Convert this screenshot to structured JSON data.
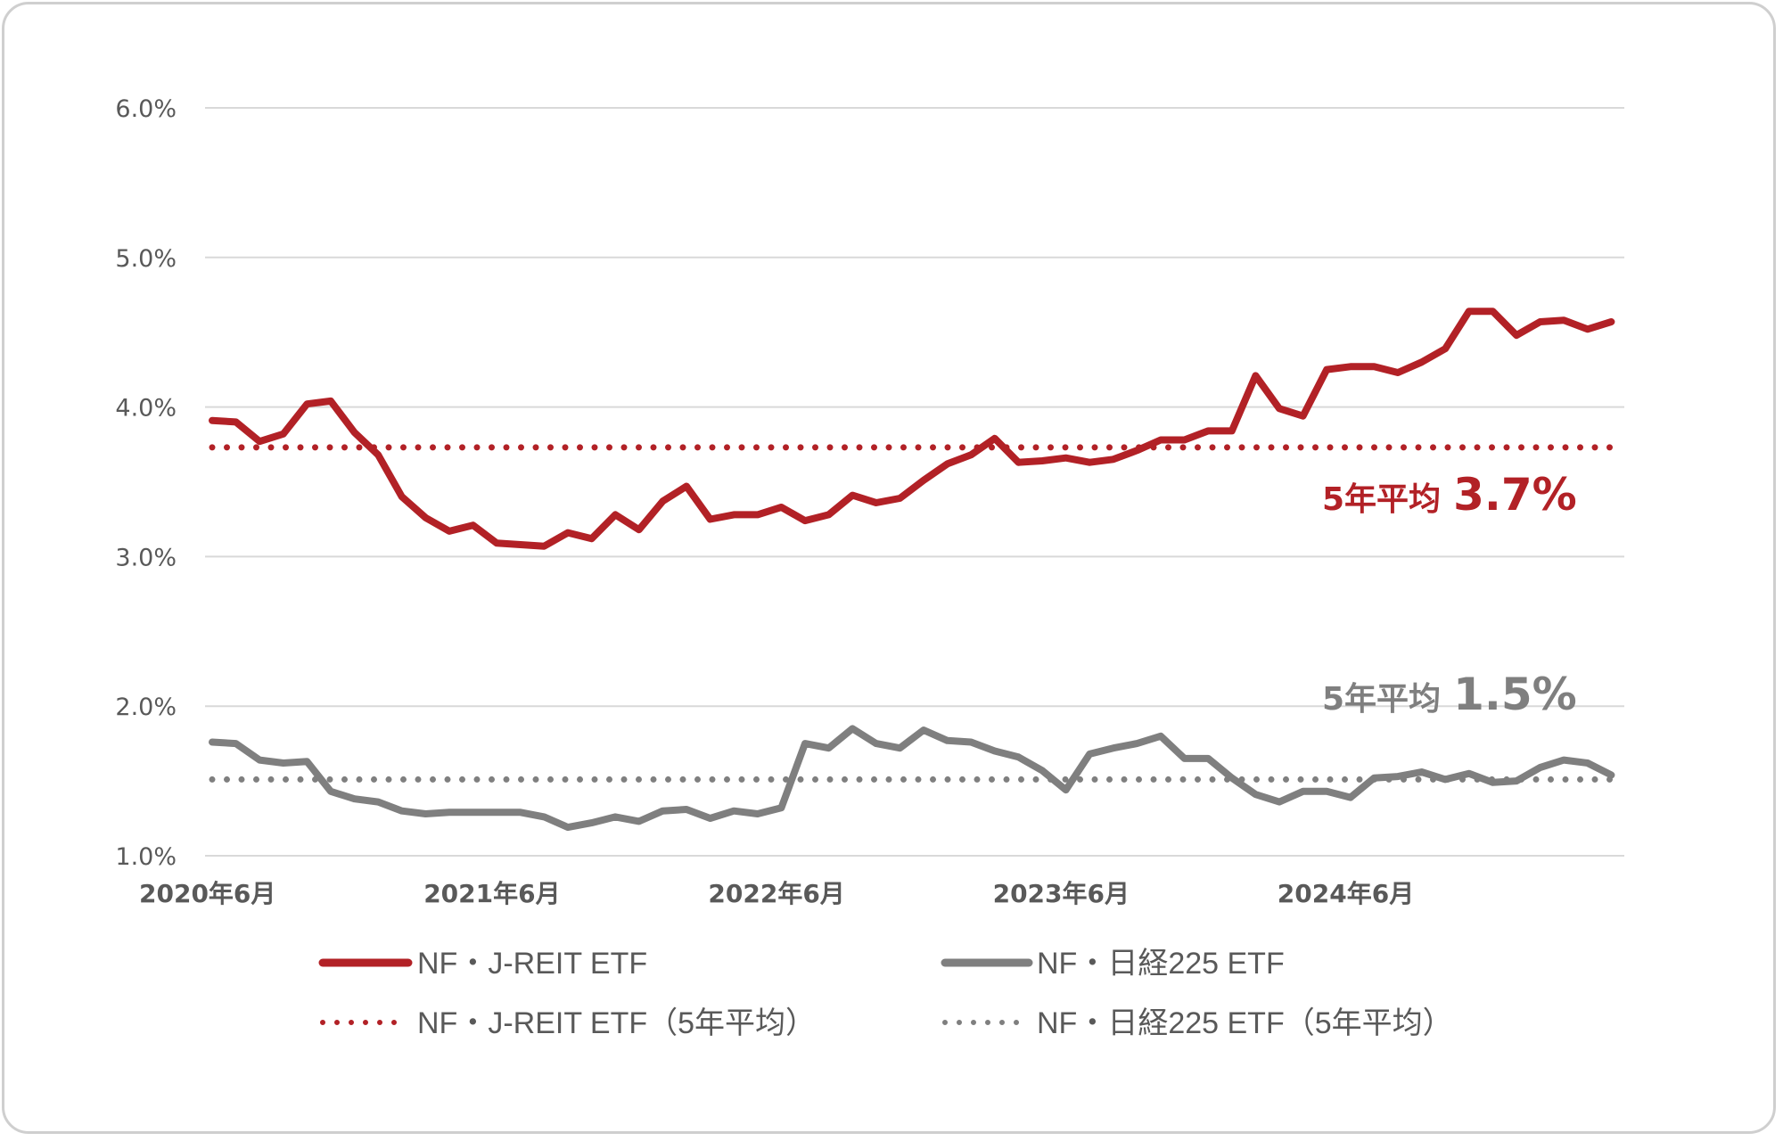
{
  "chart_data": {
    "type": "line",
    "title": "",
    "xlabel": "",
    "ylabel": "",
    "ylim": [
      1.0,
      6.0
    ],
    "yticks": [
      "1.0%",
      "2.0%",
      "3.0%",
      "4.0%",
      "5.0%",
      "6.0%"
    ],
    "xtick_labels": [
      "2020年6月",
      "2021年6月",
      "2022年6月",
      "2023年6月",
      "2024年6月"
    ],
    "x_frequency": "monthly",
    "x_start": "2020年6月",
    "grid": "horizontal",
    "legend_position": "bottom",
    "series": [
      {
        "name": "NF・J-REIT ETF",
        "style": "solid",
        "color": "#b22126",
        "values": [
          3.91,
          3.9,
          3.77,
          3.82,
          4.02,
          4.04,
          3.83,
          3.68,
          3.4,
          3.26,
          3.17,
          3.21,
          3.09,
          3.08,
          3.07,
          3.16,
          3.12,
          3.28,
          3.18,
          3.37,
          3.47,
          3.25,
          3.28,
          3.28,
          3.33,
          3.24,
          3.28,
          3.41,
          3.36,
          3.39,
          3.51,
          3.62,
          3.68,
          3.79,
          3.63,
          3.64,
          3.66,
          3.63,
          3.65,
          3.71,
          3.78,
          3.78,
          3.84,
          3.84,
          4.21,
          3.99,
          3.94,
          4.25,
          4.27,
          4.27,
          4.23,
          4.3,
          4.39,
          4.64,
          4.64,
          4.48,
          4.57,
          4.58,
          4.52,
          4.57
        ]
      },
      {
        "name": "NF・日経225 ETF",
        "style": "solid",
        "color": "#7f7f7f",
        "values": [
          1.76,
          1.75,
          1.64,
          1.62,
          1.63,
          1.43,
          1.38,
          1.36,
          1.3,
          1.28,
          1.29,
          1.29,
          1.29,
          1.29,
          1.26,
          1.19,
          1.22,
          1.26,
          1.23,
          1.3,
          1.31,
          1.25,
          1.3,
          1.28,
          1.32,
          1.75,
          1.72,
          1.85,
          1.75,
          1.72,
          1.84,
          1.77,
          1.76,
          1.7,
          1.66,
          1.57,
          1.44,
          1.68,
          1.72,
          1.75,
          1.8,
          1.65,
          1.65,
          1.52,
          1.41,
          1.36,
          1.43,
          1.43,
          1.39,
          1.52,
          1.53,
          1.56,
          1.51,
          1.55,
          1.49,
          1.5,
          1.59,
          1.64,
          1.62,
          1.54
        ]
      },
      {
        "name": "NF・J-REIT ETF（5年平均）",
        "style": "dotted",
        "color": "#b22126",
        "constant": 3.73
      },
      {
        "name": "NF・日経225 ETF（5年平均）",
        "style": "dotted",
        "color": "#7f7f7f",
        "constant": 1.51
      }
    ],
    "annotations": [
      {
        "prefix": "5年平均",
        "value": "3.7%",
        "color": "#b22126"
      },
      {
        "prefix": "5年平均",
        "value": "1.5%",
        "color": "#7f7f7f"
      }
    ]
  },
  "legend": {
    "items": [
      {
        "label": "NF・J-REIT ETF"
      },
      {
        "label": "NF・日経225 ETF"
      },
      {
        "label": "NF・J-REIT ETF（5年平均）"
      },
      {
        "label": "NF・日経225 ETF（5年平均）"
      }
    ]
  },
  "colors": {
    "jreit": "#b22126",
    "nikkei": "#7f7f7f",
    "grid": "#d9d9d9",
    "axis_text": "#595959",
    "frame": "#cfcfcf"
  }
}
